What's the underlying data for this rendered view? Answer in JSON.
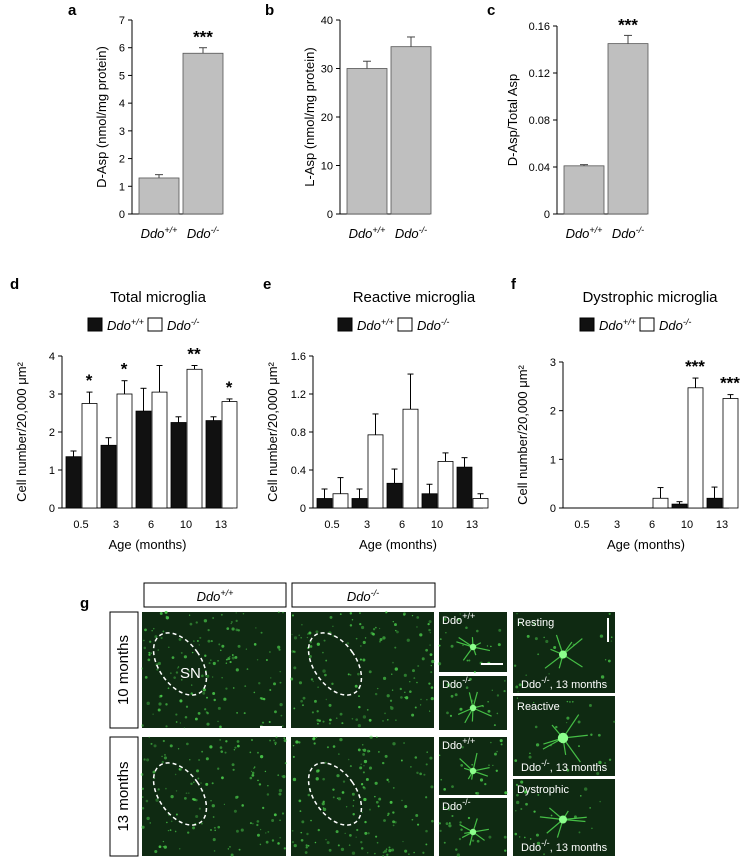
{
  "figure": {
    "panel_labels": [
      "a",
      "b",
      "c",
      "d",
      "e",
      "f",
      "g"
    ],
    "genotypes": {
      "wt_base": "Ddo",
      "wt_sup": "+/+",
      "ko_base": "Ddo",
      "ko_sup": "-/-"
    },
    "colors": {
      "gray_bar": "#bfbfbf",
      "black_bar": "#111111",
      "white_bar": "#ffffff",
      "micro_bg": "#0f2a12",
      "micro_cell": "#4fd84f"
    },
    "panel_g": {
      "row_labels": [
        "10 months",
        "13 months"
      ],
      "region_label": "SN",
      "inset_labels": [
        "Resting",
        "Reactive",
        "Dystrophic"
      ],
      "inset_caption": ", 13 months"
    }
  },
  "chart_data": [
    {
      "type": "bar",
      "panel": "a",
      "ylabel": "D-Asp (nmol/mg protein)",
      "ylim": [
        0,
        7
      ],
      "yticks": [
        0,
        1,
        2,
        3,
        4,
        5,
        6,
        7
      ],
      "categories": [
        "wt",
        "ko"
      ],
      "values": [
        1.3,
        5.8
      ],
      "errors": [
        0.12,
        0.2
      ],
      "significance": [
        "",
        "***"
      ],
      "color": "#bfbfbf"
    },
    {
      "type": "bar",
      "panel": "b",
      "ylabel": "L-Asp (nmol/mg protein)",
      "ylim": [
        0,
        40
      ],
      "yticks": [
        0,
        10,
        20,
        30,
        40
      ],
      "categories": [
        "wt",
        "ko"
      ],
      "values": [
        30.0,
        34.5
      ],
      "errors": [
        1.5,
        2.0
      ],
      "significance": [
        "",
        ""
      ],
      "color": "#bfbfbf"
    },
    {
      "type": "bar",
      "panel": "c",
      "ylabel": "D-Asp/Total Asp",
      "ylim": [
        0,
        0.16
      ],
      "yticks": [
        "0",
        "0.04",
        "0.08",
        "0.12",
        "0.16"
      ],
      "categories": [
        "wt",
        "ko"
      ],
      "values": [
        0.041,
        0.145
      ],
      "errors": [
        0.001,
        0.007
      ],
      "significance": [
        "",
        "***"
      ],
      "color": "#bfbfbf"
    },
    {
      "type": "bar",
      "panel": "d",
      "title": "Total microglia",
      "ylabel": "Cell number/20,000 μm²",
      "xlabel": "Age (months)",
      "ylim": [
        0,
        4
      ],
      "yticks": [
        0,
        1,
        2,
        3,
        4
      ],
      "categories": [
        "0.5",
        "3",
        "6",
        "10",
        "13"
      ],
      "series": [
        {
          "name": "wt",
          "values": [
            1.35,
            1.65,
            2.55,
            2.25,
            2.3
          ],
          "errors": [
            0.15,
            0.2,
            0.6,
            0.15,
            0.1
          ]
        },
        {
          "name": "ko",
          "values": [
            2.75,
            3.0,
            3.05,
            3.65,
            2.8
          ],
          "errors": [
            0.3,
            0.35,
            0.7,
            0.1,
            0.07
          ]
        }
      ],
      "significance": [
        "*",
        "*",
        "",
        "**",
        "*"
      ]
    },
    {
      "type": "bar",
      "panel": "e",
      "title": "Reactive microglia",
      "ylabel": "Cell number/20,000 μm²",
      "xlabel": "Age (months)",
      "ylim": [
        0,
        1.6
      ],
      "yticks": [
        "0",
        "0.4",
        "0.8",
        "1.2",
        "1.6"
      ],
      "categories": [
        "0.5",
        "3",
        "6",
        "10",
        "13"
      ],
      "series": [
        {
          "name": "wt",
          "values": [
            0.1,
            0.1,
            0.26,
            0.15,
            0.43
          ],
          "errors": [
            0.1,
            0.1,
            0.15,
            0.1,
            0.1
          ]
        },
        {
          "name": "ko",
          "values": [
            0.15,
            0.77,
            1.04,
            0.49,
            0.1
          ],
          "errors": [
            0.17,
            0.22,
            0.37,
            0.09,
            0.05
          ]
        }
      ],
      "significance": [
        "",
        "",
        "",
        "",
        ""
      ]
    },
    {
      "type": "bar",
      "panel": "f",
      "title": "Dystrophic microglia",
      "ylabel": "Cell number/20,000 μm²",
      "xlabel": "Age (months)",
      "ylim": [
        0,
        3
      ],
      "yticks": [
        0,
        1,
        2,
        3
      ],
      "categories": [
        "0.5",
        "3",
        "6",
        "10",
        "13"
      ],
      "series": [
        {
          "name": "wt",
          "values": [
            0,
            0,
            0,
            0.08,
            0.2
          ],
          "errors": [
            0,
            0,
            0,
            0.05,
            0.23
          ]
        },
        {
          "name": "ko",
          "values": [
            0,
            0,
            0.2,
            2.47,
            2.25
          ],
          "errors": [
            0,
            0,
            0.22,
            0.2,
            0.08
          ]
        }
      ],
      "significance": [
        "",
        "",
        "",
        "***",
        "***"
      ]
    }
  ]
}
